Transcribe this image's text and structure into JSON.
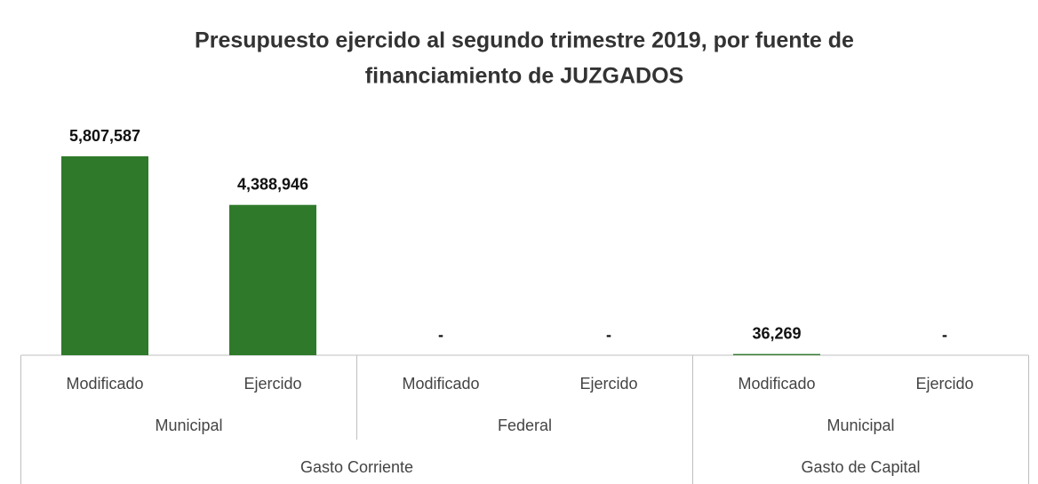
{
  "chart_data": {
    "type": "bar",
    "title": [
      "Presupuesto ejercido al segundo trimestre 2019, por fuente de",
      "financiamiento de JUZGADOS"
    ],
    "color": "#2f7a2a",
    "groups": [
      {
        "name": "Gasto Corriente",
        "subgroups": [
          {
            "name": "Municipal",
            "categories": [
              "Modificado",
              "Ejercido"
            ],
            "values": [
              5807587,
              4388946
            ],
            "value_labels": [
              "5,807,587",
              "4,388,946"
            ]
          },
          {
            "name": "Federal",
            "categories": [
              "Modificado",
              "Ejercido"
            ],
            "values": [
              0,
              0
            ],
            "value_labels": [
              "-",
              "-"
            ]
          }
        ]
      },
      {
        "name": "Gasto de Capital",
        "subgroups": [
          {
            "name": "Municipal",
            "categories": [
              "Modificado",
              "Ejercido"
            ],
            "values": [
              36269,
              0
            ],
            "value_labels": [
              "36,269",
              "-"
            ]
          }
        ]
      }
    ]
  }
}
